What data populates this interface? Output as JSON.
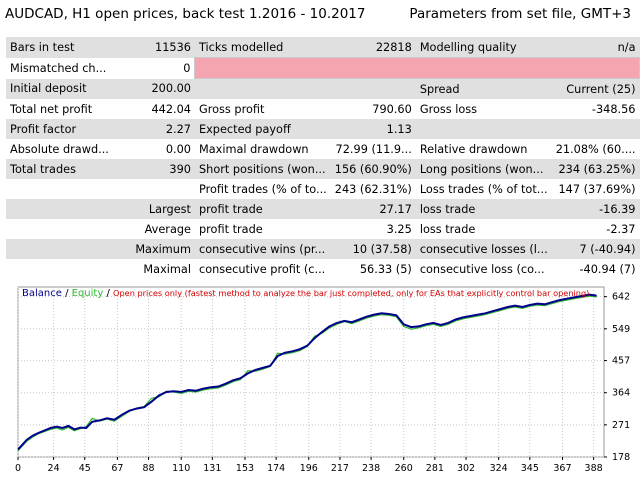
{
  "header": {
    "title": "AUDCAD,  H1 open prices, back test 1.2016 - 10.2017",
    "params": "Parameters from set file, GMT+3"
  },
  "report": {
    "rows": [
      {
        "shade": true,
        "cells": [
          "Bars in test",
          "11536",
          "Ticks modelled",
          "22818",
          "Modelling quality",
          "n/a"
        ]
      },
      {
        "shade": false,
        "cells": [
          "Mismatched ch...",
          "0",
          "",
          "",
          "",
          ""
        ],
        "pink": true
      },
      {
        "shade": true,
        "cells": [
          "Initial deposit",
          "200.00",
          "",
          "",
          "Spread",
          "Current (25)"
        ]
      },
      {
        "shade": false,
        "cells": [
          "Total net profit",
          "442.04",
          "Gross profit",
          "790.60",
          "Gross loss",
          "-348.56"
        ]
      },
      {
        "shade": true,
        "cells": [
          "Profit factor",
          "2.27",
          "Expected payoff",
          "1.13",
          "",
          ""
        ]
      },
      {
        "shade": false,
        "cells": [
          "Absolute drawd...",
          "0.00",
          "Maximal drawdown",
          "72.99 (11.9...",
          "Relative drawdown",
          "21.08% (60...."
        ]
      },
      {
        "shade": true,
        "cells": [
          "Total trades",
          "390",
          "Short positions (won...",
          "156 (60.90%)",
          "Long positions (won...",
          "234 (63.25%)"
        ]
      },
      {
        "shade": false,
        "cells": [
          "",
          "",
          "Profit trades (% of to...",
          "243 (62.31%)",
          "Loss trades (% of tot...",
          "147 (37.69%)"
        ]
      },
      {
        "shade": true,
        "cells": [
          "",
          "Largest",
          "profit trade",
          "27.17",
          "loss trade",
          "-16.39"
        ]
      },
      {
        "shade": false,
        "cells": [
          "",
          "Average",
          "profit trade",
          "3.25",
          "loss trade",
          "-2.37"
        ]
      },
      {
        "shade": true,
        "cells": [
          "",
          "Maximum",
          "consecutive wins (pr...",
          "10 (37.58)",
          "consecutive losses (l...",
          "7 (-40.94)"
        ]
      },
      {
        "shade": false,
        "cells": [
          "",
          "Maximal",
          "consecutive profit (c...",
          "56.33 (5)",
          "consecutive loss (co...",
          "-40.94 (7)"
        ]
      }
    ]
  },
  "chart": {
    "legend": {
      "balance": "Balance",
      "equity": "Equity",
      "note": "Open prices only (fastest method to analyze the bar just completed, only for EAs that explicitly control bar opening)",
      "sep": " / "
    },
    "colors": {
      "balance": "#00008b",
      "equity": "#2db82d",
      "note": "#d40000",
      "grid": "#c8c8c8"
    }
  },
  "chart_data": {
    "type": "line",
    "xlabel": "",
    "ylabel": "",
    "grid": true,
    "x_ticks": [
      0,
      24,
      45,
      67,
      88,
      110,
      131,
      153,
      174,
      196,
      217,
      238,
      260,
      281,
      302,
      324,
      345,
      367,
      388
    ],
    "y_ticks": [
      178,
      271,
      364,
      457,
      549,
      642
    ],
    "xlim": [
      0,
      395
    ],
    "ylim": [
      178,
      670
    ],
    "series": [
      {
        "name": "Balance",
        "x": [
          0,
          3,
          6,
          10,
          14,
          18,
          22,
          26,
          30,
          34,
          38,
          42,
          46,
          50,
          55,
          60,
          65,
          70,
          75,
          80,
          85,
          90,
          95,
          100,
          105,
          110,
          115,
          120,
          125,
          130,
          135,
          140,
          145,
          150,
          155,
          160,
          165,
          170,
          175,
          180,
          185,
          190,
          195,
          200,
          205,
          210,
          215,
          220,
          225,
          230,
          235,
          240,
          245,
          250,
          255,
          260,
          265,
          270,
          275,
          280,
          285,
          290,
          295,
          300,
          305,
          310,
          315,
          320,
          325,
          330,
          335,
          340,
          345,
          350,
          355,
          360,
          365,
          370,
          375,
          380,
          385,
          390
        ],
        "values": [
          200,
          214,
          228,
          240,
          248,
          255,
          262,
          266,
          262,
          268,
          258,
          263,
          262,
          280,
          284,
          290,
          286,
          300,
          312,
          318,
          322,
          338,
          356,
          366,
          368,
          366,
          372,
          370,
          376,
          380,
          382,
          390,
          400,
          406,
          420,
          430,
          436,
          442,
          470,
          480,
          484,
          490,
          500,
          522,
          540,
          556,
          566,
          572,
          568,
          576,
          584,
          590,
          594,
          592,
          588,
          562,
          554,
          556,
          562,
          566,
          560,
          566,
          576,
          582,
          586,
          590,
          594,
          600,
          606,
          612,
          616,
          612,
          618,
          622,
          620,
          626,
          632,
          636,
          640,
          644,
          648,
          645
        ]
      },
      {
        "name": "Equity",
        "x": [
          0,
          3,
          6,
          10,
          14,
          18,
          22,
          26,
          30,
          34,
          38,
          42,
          46,
          50,
          55,
          60,
          65,
          70,
          75,
          80,
          85,
          90,
          95,
          100,
          105,
          110,
          115,
          120,
          125,
          130,
          135,
          140,
          145,
          150,
          155,
          160,
          165,
          170,
          175,
          180,
          185,
          190,
          195,
          200,
          205,
          210,
          215,
          220,
          225,
          230,
          235,
          240,
          245,
          250,
          255,
          260,
          265,
          270,
          275,
          280,
          285,
          290,
          295,
          300,
          305,
          310,
          315,
          320,
          325,
          330,
          335,
          340,
          345,
          350,
          355,
          360,
          365,
          370,
          375,
          380,
          385,
          390
        ],
        "values": [
          196,
          210,
          224,
          236,
          246,
          252,
          258,
          262,
          256,
          264,
          254,
          260,
          266,
          290,
          282,
          288,
          282,
          296,
          310,
          320,
          324,
          348,
          352,
          368,
          366,
          362,
          368,
          366,
          372,
          376,
          378,
          386,
          396,
          402,
          428,
          426,
          432,
          440,
          478,
          476,
          480,
          486,
          498,
          528,
          536,
          552,
          562,
          570,
          564,
          572,
          580,
          586,
          590,
          588,
          584,
          556,
          548,
          552,
          558,
          562,
          556,
          562,
          572,
          578,
          582,
          586,
          590,
          596,
          602,
          608,
          612,
          608,
          614,
          618,
          616,
          622,
          628,
          632,
          636,
          640,
          644,
          641
        ]
      }
    ]
  }
}
